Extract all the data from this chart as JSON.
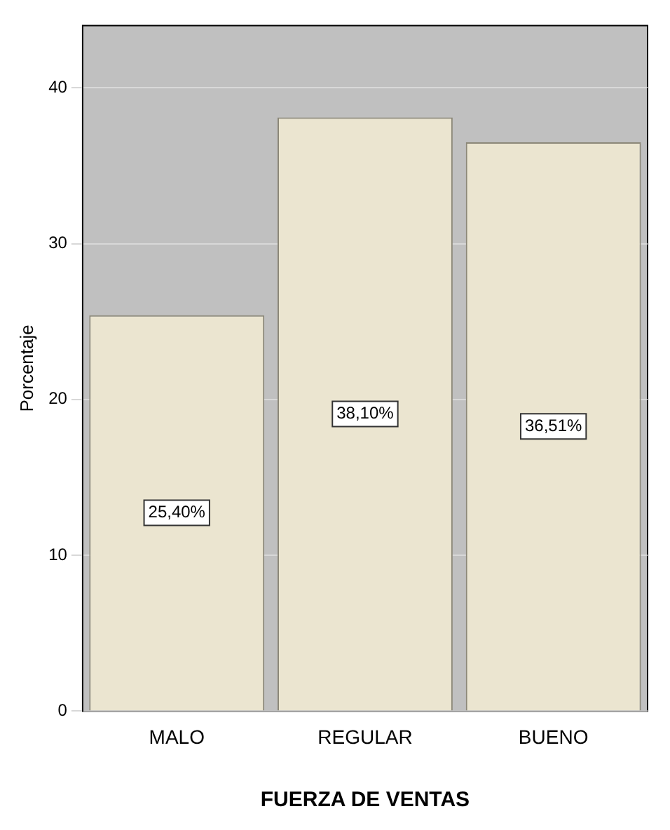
{
  "chart_data": {
    "type": "bar",
    "xlabel": "FUERZA DE VENTAS",
    "ylabel": "Porcentaje",
    "categories": [
      "MALO",
      "REGULAR",
      "BUENO"
    ],
    "values": [
      25.4,
      38.1,
      36.51
    ],
    "value_labels": [
      "25,40%",
      "38,10%",
      "36,51%"
    ],
    "color": "#ebe5d0",
    "ylim": [
      0,
      44
    ],
    "yticks": [
      0,
      10,
      20,
      30,
      40
    ],
    "grid": "y",
    "legend": false
  }
}
